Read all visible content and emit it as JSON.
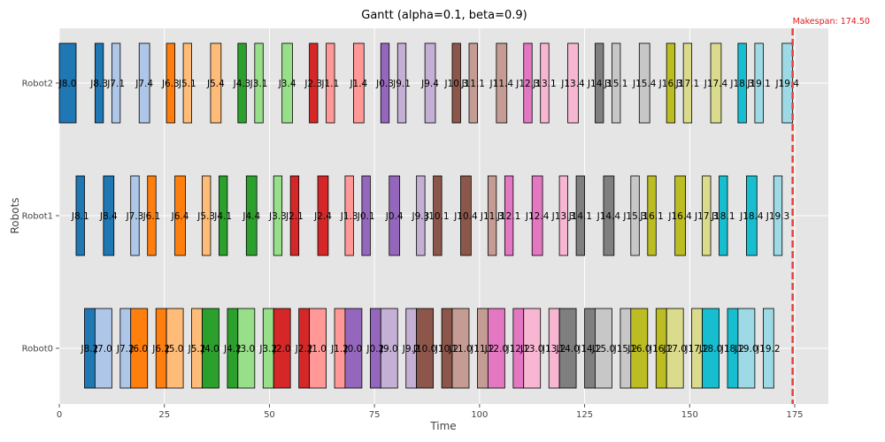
{
  "chart_data": {
    "type": "gantt",
    "title": "Gantt (alpha=0.1, beta=0.9)",
    "xlabel": "Time",
    "ylabel": "Robots",
    "xlim": [
      0,
      183
    ],
    "xticks": [
      0,
      25,
      50,
      75,
      100,
      125,
      150,
      175
    ],
    "grid": true,
    "makespan": 174.5,
    "makespan_label": "Makespan: 174.50",
    "robots": [
      "Robot0",
      "Robot1",
      "Robot2"
    ],
    "colors": [
      "#1f77b4",
      "#aec7e8",
      "#ff7f0e",
      "#ffbb78",
      "#2ca02c",
      "#98df8a",
      "#d62728",
      "#ff9896",
      "#9467bd",
      "#c5b0d5",
      "#8c564b",
      "#c49c94",
      "#e377c2",
      "#f7b6d2",
      "#7f7f7f",
      "#c7c7c7",
      "#bcbd22",
      "#dbdb8d",
      "#17becf",
      "#9edae5"
    ],
    "tasks": [
      {
        "robot": "Robot2",
        "label": "J8.0",
        "job": 0,
        "start": 0.0,
        "end": 4.0
      },
      {
        "robot": "Robot2",
        "label": "J8.3",
        "job": 0,
        "start": 8.5,
        "end": 10.5
      },
      {
        "robot": "Robot2",
        "label": "J7.1",
        "job": 1,
        "start": 12.5,
        "end": 14.5
      },
      {
        "robot": "Robot2",
        "label": "J7.4",
        "job": 1,
        "start": 19.0,
        "end": 21.5
      },
      {
        "robot": "Robot2",
        "label": "J6.3",
        "job": 2,
        "start": 25.5,
        "end": 27.5
      },
      {
        "robot": "Robot2",
        "label": "J5.1",
        "job": 3,
        "start": 29.5,
        "end": 31.5
      },
      {
        "robot": "Robot2",
        "label": "J5.4",
        "job": 3,
        "start": 36.0,
        "end": 38.5
      },
      {
        "robot": "Robot2",
        "label": "J4.3",
        "job": 4,
        "start": 42.5,
        "end": 44.5
      },
      {
        "robot": "Robot2",
        "label": "J3.1",
        "job": 5,
        "start": 46.5,
        "end": 48.5
      },
      {
        "robot": "Robot2",
        "label": "J3.4",
        "job": 5,
        "start": 53.0,
        "end": 55.5
      },
      {
        "robot": "Robot2",
        "label": "J2.3",
        "job": 6,
        "start": 59.5,
        "end": 61.5
      },
      {
        "robot": "Robot2",
        "label": "J1.1",
        "job": 7,
        "start": 63.5,
        "end": 65.5
      },
      {
        "robot": "Robot2",
        "label": "J1.4",
        "job": 7,
        "start": 70.0,
        "end": 72.5
      },
      {
        "robot": "Robot2",
        "label": "J0.3",
        "job": 8,
        "start": 76.5,
        "end": 78.5
      },
      {
        "robot": "Robot2",
        "label": "J9.1",
        "job": 9,
        "start": 80.5,
        "end": 82.5
      },
      {
        "robot": "Robot2",
        "label": "J9.4",
        "job": 9,
        "start": 87.0,
        "end": 89.5
      },
      {
        "robot": "Robot2",
        "label": "J10.3",
        "job": 10,
        "start": 93.5,
        "end": 95.5
      },
      {
        "robot": "Robot2",
        "label": "J11.1",
        "job": 11,
        "start": 97.5,
        "end": 99.5
      },
      {
        "robot": "Robot2",
        "label": "J11.4",
        "job": 11,
        "start": 104.0,
        "end": 106.5
      },
      {
        "robot": "Robot2",
        "label": "J12.3",
        "job": 12,
        "start": 110.5,
        "end": 112.5
      },
      {
        "robot": "Robot2",
        "label": "J13.1",
        "job": 13,
        "start": 114.5,
        "end": 116.5
      },
      {
        "robot": "Robot2",
        "label": "J13.4",
        "job": 13,
        "start": 121.0,
        "end": 123.5
      },
      {
        "robot": "Robot2",
        "label": "J14.3",
        "job": 14,
        "start": 127.5,
        "end": 129.5
      },
      {
        "robot": "Robot2",
        "label": "J15.1",
        "job": 15,
        "start": 131.5,
        "end": 133.5
      },
      {
        "robot": "Robot2",
        "label": "J15.4",
        "job": 15,
        "start": 138.0,
        "end": 140.5
      },
      {
        "robot": "Robot2",
        "label": "J16.3",
        "job": 16,
        "start": 144.5,
        "end": 146.5
      },
      {
        "robot": "Robot2",
        "label": "J17.1",
        "job": 17,
        "start": 148.5,
        "end": 150.5
      },
      {
        "robot": "Robot2",
        "label": "J17.4",
        "job": 17,
        "start": 155.0,
        "end": 157.5
      },
      {
        "robot": "Robot2",
        "label": "J18.3",
        "job": 18,
        "start": 161.5,
        "end": 163.5
      },
      {
        "robot": "Robot2",
        "label": "J19.1",
        "job": 19,
        "start": 165.5,
        "end": 167.5
      },
      {
        "robot": "Robot2",
        "label": "J19.4",
        "job": 19,
        "start": 172.0,
        "end": 174.5
      },
      {
        "robot": "Robot1",
        "label": "J8.1",
        "job": 0,
        "start": 4.0,
        "end": 6.0
      },
      {
        "robot": "Robot1",
        "label": "J8.4",
        "job": 0,
        "start": 10.5,
        "end": 13.0
      },
      {
        "robot": "Robot1",
        "label": "J7.3",
        "job": 1,
        "start": 17.0,
        "end": 19.0
      },
      {
        "robot": "Robot1",
        "label": "J6.1",
        "job": 2,
        "start": 21.0,
        "end": 23.0
      },
      {
        "robot": "Robot1",
        "label": "J6.4",
        "job": 2,
        "start": 27.5,
        "end": 30.0
      },
      {
        "robot": "Robot1",
        "label": "J5.3",
        "job": 3,
        "start": 34.0,
        "end": 36.0
      },
      {
        "robot": "Robot1",
        "label": "J4.1",
        "job": 4,
        "start": 38.0,
        "end": 40.0
      },
      {
        "robot": "Robot1",
        "label": "J4.4",
        "job": 4,
        "start": 44.5,
        "end": 47.0
      },
      {
        "robot": "Robot1",
        "label": "J3.3",
        "job": 5,
        "start": 51.0,
        "end": 53.0
      },
      {
        "robot": "Robot1",
        "label": "J2.1",
        "job": 6,
        "start": 55.0,
        "end": 57.0
      },
      {
        "robot": "Robot1",
        "label": "J2.4",
        "job": 6,
        "start": 61.5,
        "end": 64.0
      },
      {
        "robot": "Robot1",
        "label": "J1.3",
        "job": 7,
        "start": 68.0,
        "end": 70.0
      },
      {
        "robot": "Robot1",
        "label": "J0.1",
        "job": 8,
        "start": 72.0,
        "end": 74.0
      },
      {
        "robot": "Robot1",
        "label": "J0.4",
        "job": 8,
        "start": 78.5,
        "end": 81.0
      },
      {
        "robot": "Robot1",
        "label": "J9.3",
        "job": 9,
        "start": 85.0,
        "end": 87.0
      },
      {
        "robot": "Robot1",
        "label": "J10.1",
        "job": 10,
        "start": 89.0,
        "end": 91.0
      },
      {
        "robot": "Robot1",
        "label": "J10.4",
        "job": 10,
        "start": 95.5,
        "end": 98.0
      },
      {
        "robot": "Robot1",
        "label": "J11.3",
        "job": 11,
        "start": 102.0,
        "end": 104.0
      },
      {
        "robot": "Robot1",
        "label": "J12.1",
        "job": 12,
        "start": 106.0,
        "end": 108.0
      },
      {
        "robot": "Robot1",
        "label": "J12.4",
        "job": 12,
        "start": 112.5,
        "end": 115.0
      },
      {
        "robot": "Robot1",
        "label": "J13.3",
        "job": 13,
        "start": 119.0,
        "end": 121.0
      },
      {
        "robot": "Robot1",
        "label": "J14.1",
        "job": 14,
        "start": 123.0,
        "end": 125.0
      },
      {
        "robot": "Robot1",
        "label": "J14.4",
        "job": 14,
        "start": 129.5,
        "end": 132.0
      },
      {
        "robot": "Robot1",
        "label": "J15.3",
        "job": 15,
        "start": 136.0,
        "end": 138.0
      },
      {
        "robot": "Robot1",
        "label": "J16.1",
        "job": 16,
        "start": 140.0,
        "end": 142.0
      },
      {
        "robot": "Robot1",
        "label": "J16.4",
        "job": 16,
        "start": 146.5,
        "end": 149.0
      },
      {
        "robot": "Robot1",
        "label": "J17.3",
        "job": 17,
        "start": 153.0,
        "end": 155.0
      },
      {
        "robot": "Robot1",
        "label": "J18.1",
        "job": 18,
        "start": 157.0,
        "end": 159.0
      },
      {
        "robot": "Robot1",
        "label": "J18.4",
        "job": 18,
        "start": 163.5,
        "end": 166.0
      },
      {
        "robot": "Robot1",
        "label": "J19.3",
        "job": 19,
        "start": 170.0,
        "end": 172.0
      },
      {
        "robot": "Robot0",
        "label": "J8.2",
        "job": 0,
        "start": 6.0,
        "end": 8.5
      },
      {
        "robot": "Robot0",
        "label": "J7.0",
        "job": 1,
        "start": 8.5,
        "end": 12.5
      },
      {
        "robot": "Robot0",
        "label": "J7.2",
        "job": 1,
        "start": 14.5,
        "end": 17.0
      },
      {
        "robot": "Robot0",
        "label": "J6.0",
        "job": 2,
        "start": 17.0,
        "end": 21.0
      },
      {
        "robot": "Robot0",
        "label": "J6.2",
        "job": 2,
        "start": 23.0,
        "end": 25.5
      },
      {
        "robot": "Robot0",
        "label": "J5.0",
        "job": 3,
        "start": 25.5,
        "end": 29.5
      },
      {
        "robot": "Robot0",
        "label": "J5.2",
        "job": 3,
        "start": 31.5,
        "end": 34.0
      },
      {
        "robot": "Robot0",
        "label": "J4.0",
        "job": 4,
        "start": 34.0,
        "end": 38.0
      },
      {
        "robot": "Robot0",
        "label": "J4.2",
        "job": 4,
        "start": 40.0,
        "end": 42.5
      },
      {
        "robot": "Robot0",
        "label": "J3.0",
        "job": 5,
        "start": 42.5,
        "end": 46.5
      },
      {
        "robot": "Robot0",
        "label": "J3.2",
        "job": 5,
        "start": 48.5,
        "end": 51.0
      },
      {
        "robot": "Robot0",
        "label": "J2.0",
        "job": 6,
        "start": 51.0,
        "end": 55.0
      },
      {
        "robot": "Robot0",
        "label": "J2.2",
        "job": 6,
        "start": 57.0,
        "end": 59.5
      },
      {
        "robot": "Robot0",
        "label": "J1.0",
        "job": 7,
        "start": 59.5,
        "end": 63.5
      },
      {
        "robot": "Robot0",
        "label": "J1.2",
        "job": 7,
        "start": 65.5,
        "end": 68.0
      },
      {
        "robot": "Robot0",
        "label": "J0.0",
        "job": 8,
        "start": 68.0,
        "end": 72.0
      },
      {
        "robot": "Robot0",
        "label": "J0.2",
        "job": 8,
        "start": 74.0,
        "end": 76.5
      },
      {
        "robot": "Robot0",
        "label": "J9.0",
        "job": 9,
        "start": 76.5,
        "end": 80.5
      },
      {
        "robot": "Robot0",
        "label": "J9.2",
        "job": 9,
        "start": 82.5,
        "end": 85.0
      },
      {
        "robot": "Robot0",
        "label": "J10.0",
        "job": 10,
        "start": 85.0,
        "end": 89.0
      },
      {
        "robot": "Robot0",
        "label": "J10.2",
        "job": 10,
        "start": 91.0,
        "end": 93.5
      },
      {
        "robot": "Robot0",
        "label": "J11.0",
        "job": 11,
        "start": 93.5,
        "end": 97.5
      },
      {
        "robot": "Robot0",
        "label": "J11.2",
        "job": 11,
        "start": 99.5,
        "end": 102.0
      },
      {
        "robot": "Robot0",
        "label": "J12.0",
        "job": 12,
        "start": 102.0,
        "end": 106.0
      },
      {
        "robot": "Robot0",
        "label": "J12.2",
        "job": 12,
        "start": 108.0,
        "end": 110.5
      },
      {
        "robot": "Robot0",
        "label": "J13.0",
        "job": 13,
        "start": 110.5,
        "end": 114.5
      },
      {
        "robot": "Robot0",
        "label": "J13.2",
        "job": 13,
        "start": 116.5,
        "end": 119.0
      },
      {
        "robot": "Robot0",
        "label": "J14.0",
        "job": 14,
        "start": 119.0,
        "end": 123.0
      },
      {
        "robot": "Robot0",
        "label": "J14.2",
        "job": 14,
        "start": 125.0,
        "end": 127.5
      },
      {
        "robot": "Robot0",
        "label": "J15.0",
        "job": 15,
        "start": 127.5,
        "end": 131.5
      },
      {
        "robot": "Robot0",
        "label": "J15.2",
        "job": 15,
        "start": 133.5,
        "end": 136.0
      },
      {
        "robot": "Robot0",
        "label": "J16.0",
        "job": 16,
        "start": 136.0,
        "end": 140.0
      },
      {
        "robot": "Robot0",
        "label": "J16.2",
        "job": 16,
        "start": 142.0,
        "end": 144.5
      },
      {
        "robot": "Robot0",
        "label": "J17.0",
        "job": 17,
        "start": 144.5,
        "end": 148.5
      },
      {
        "robot": "Robot0",
        "label": "J17.2",
        "job": 17,
        "start": 150.5,
        "end": 153.0
      },
      {
        "robot": "Robot0",
        "label": "J18.0",
        "job": 18,
        "start": 153.0,
        "end": 157.0
      },
      {
        "robot": "Robot0",
        "label": "J18.2",
        "job": 18,
        "start": 159.0,
        "end": 161.5
      },
      {
        "robot": "Robot0",
        "label": "J19.0",
        "job": 19,
        "start": 161.5,
        "end": 165.5
      },
      {
        "robot": "Robot0",
        "label": "J19.2",
        "job": 19,
        "start": 167.5,
        "end": 170.0
      }
    ]
  }
}
